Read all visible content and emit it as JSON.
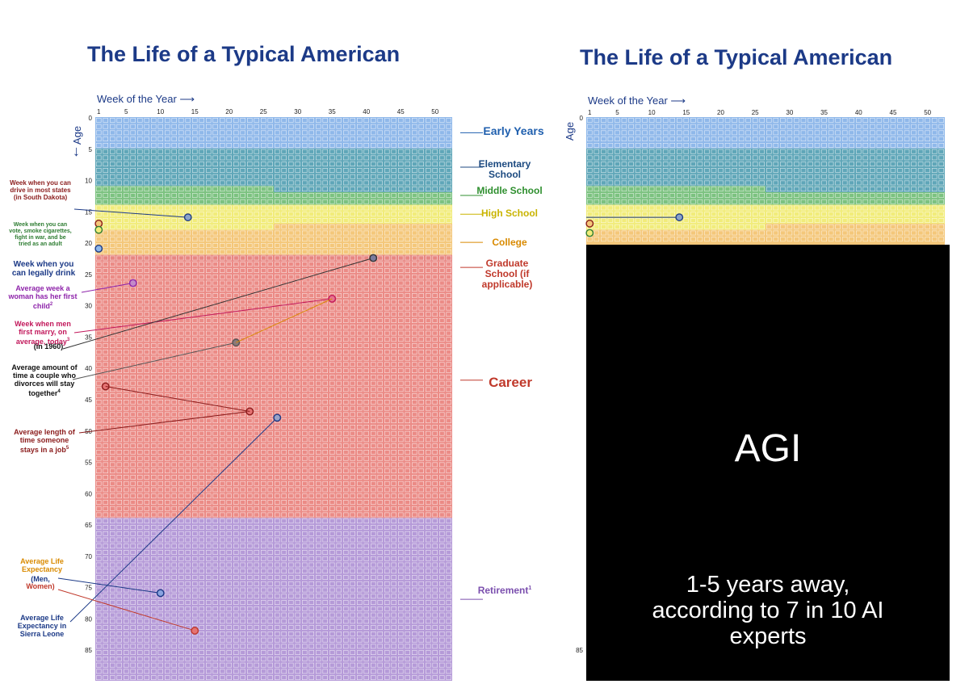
{
  "left": {
    "title": "The Life of a Typical American",
    "week_header": "Week of the Year",
    "age_header": "Age",
    "week_ticks": [
      "1",
      "5",
      "10",
      "15",
      "20",
      "25",
      "30",
      "35",
      "40",
      "45",
      "50"
    ],
    "age_ticks": [
      "0",
      "5",
      "10",
      "15",
      "20",
      "25",
      "30",
      "35",
      "40",
      "45",
      "50",
      "55",
      "60",
      "65",
      "70",
      "75",
      "80",
      "85"
    ],
    "bands": [
      {
        "label": "Early Years",
        "color": "#8fb8ea",
        "label_color": "#1f5fae"
      },
      {
        "label": "Elementary School",
        "color": "#5fa6b8",
        "label_color": "#1c4a80"
      },
      {
        "label": "Middle School",
        "color": "#7cc280",
        "label_color": "#2f8f2f"
      },
      {
        "label": "High School",
        "color": "#f1ec7a",
        "label_color": "#c9b400"
      },
      {
        "label": "College",
        "color": "#f4c77a",
        "label_color": "#d98a00"
      },
      {
        "label": "Graduate School (if applicable)",
        "color": "#e78682",
        "label_color": "#c0392b"
      },
      {
        "label": "Career",
        "color": "#eb8b86",
        "label_color": "#c0392b"
      },
      {
        "label": "Retirement",
        "label_sup": "1",
        "color": "#b59ad8",
        "label_color": "#7b4fae"
      }
    ],
    "annotations": [
      {
        "text": "Week when you can drive in most states (in South Dakota)",
        "color": "#8b1c1c"
      },
      {
        "text": "Week when you can vote, smoke cigarettes, fight in war, and be tried as an adult",
        "color": "#2e7d32"
      },
      {
        "text": "Week when you can legally drink",
        "color": "#1c3a87"
      },
      {
        "text": "Average week a woman has her first child",
        "sup": "2",
        "color": "#8e24aa"
      },
      {
        "text": "Week when men first marry, on average, today",
        "sup": "3",
        "color": "#c2185b"
      },
      {
        "text": "(in 1960)",
        "color": "#111111"
      },
      {
        "text": "Average amount of time a couple who divorces will stay together",
        "sup": "4",
        "color": "#111111"
      },
      {
        "text": "Average length of time someone stays in a job",
        "sup": "5",
        "color": "#8b1c1c"
      },
      {
        "text": "Average Life Expectancy",
        "color": "#d98a00"
      },
      {
        "text": "(Men,",
        "color": "#1c3a87"
      },
      {
        "text": "Women)",
        "color": "#c0392b"
      },
      {
        "text": "Average Life Expectancy in Sierra Leone",
        "color": "#1c3a87"
      }
    ]
  },
  "right": {
    "title": "The Life of a Typical American",
    "week_header": "Week of the Year",
    "age_header": "Age",
    "age_ticks": [
      "0",
      "85"
    ],
    "overlay_title": "AGI",
    "overlay_subtitle": "1-5 years away, according to 7 in 10 AI experts"
  }
}
